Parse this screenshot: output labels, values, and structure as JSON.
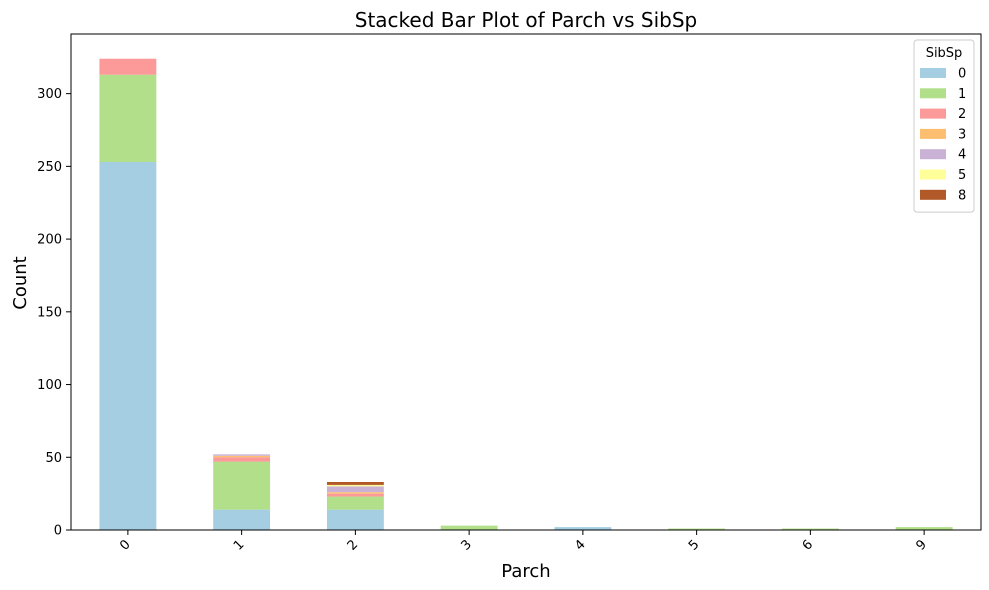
{
  "chart_data": {
    "type": "bar",
    "stacked": true,
    "title": "Stacked Bar Plot of Parch vs SibSp",
    "xlabel": "Parch",
    "ylabel": "Count",
    "categories": [
      "0",
      "1",
      "2",
      "3",
      "4",
      "5",
      "6",
      "9"
    ],
    "ylim": [
      0,
      341
    ],
    "yticks": [
      0,
      50,
      100,
      150,
      200,
      250,
      300
    ],
    "grid": false,
    "legend": {
      "title": "SibSp",
      "position": "top-right"
    },
    "series": [
      {
        "name": "0",
        "color": "#a6cee3",
        "values": [
          253,
          14,
          14,
          0,
          2,
          0,
          0,
          0
        ]
      },
      {
        "name": "1",
        "color": "#b2df8a",
        "values": [
          60,
          33,
          9,
          3,
          0,
          1,
          1,
          2
        ]
      },
      {
        "name": "2",
        "color": "#fb9a99",
        "values": [
          11,
          3,
          2,
          0,
          0,
          0,
          0,
          0
        ]
      },
      {
        "name": "3",
        "color": "#fdbf6f",
        "values": [
          0,
          1,
          1,
          0,
          0,
          0,
          0,
          0
        ]
      },
      {
        "name": "4",
        "color": "#cab2d6",
        "values": [
          0,
          1,
          4,
          0,
          0,
          0,
          0,
          0
        ]
      },
      {
        "name": "5",
        "color": "#ffff99",
        "values": [
          0,
          0,
          1,
          0,
          0,
          0,
          0,
          0
        ]
      },
      {
        "name": "8",
        "color": "#b15928",
        "values": [
          0,
          0,
          2,
          0,
          0,
          0,
          0,
          0
        ]
      }
    ]
  }
}
